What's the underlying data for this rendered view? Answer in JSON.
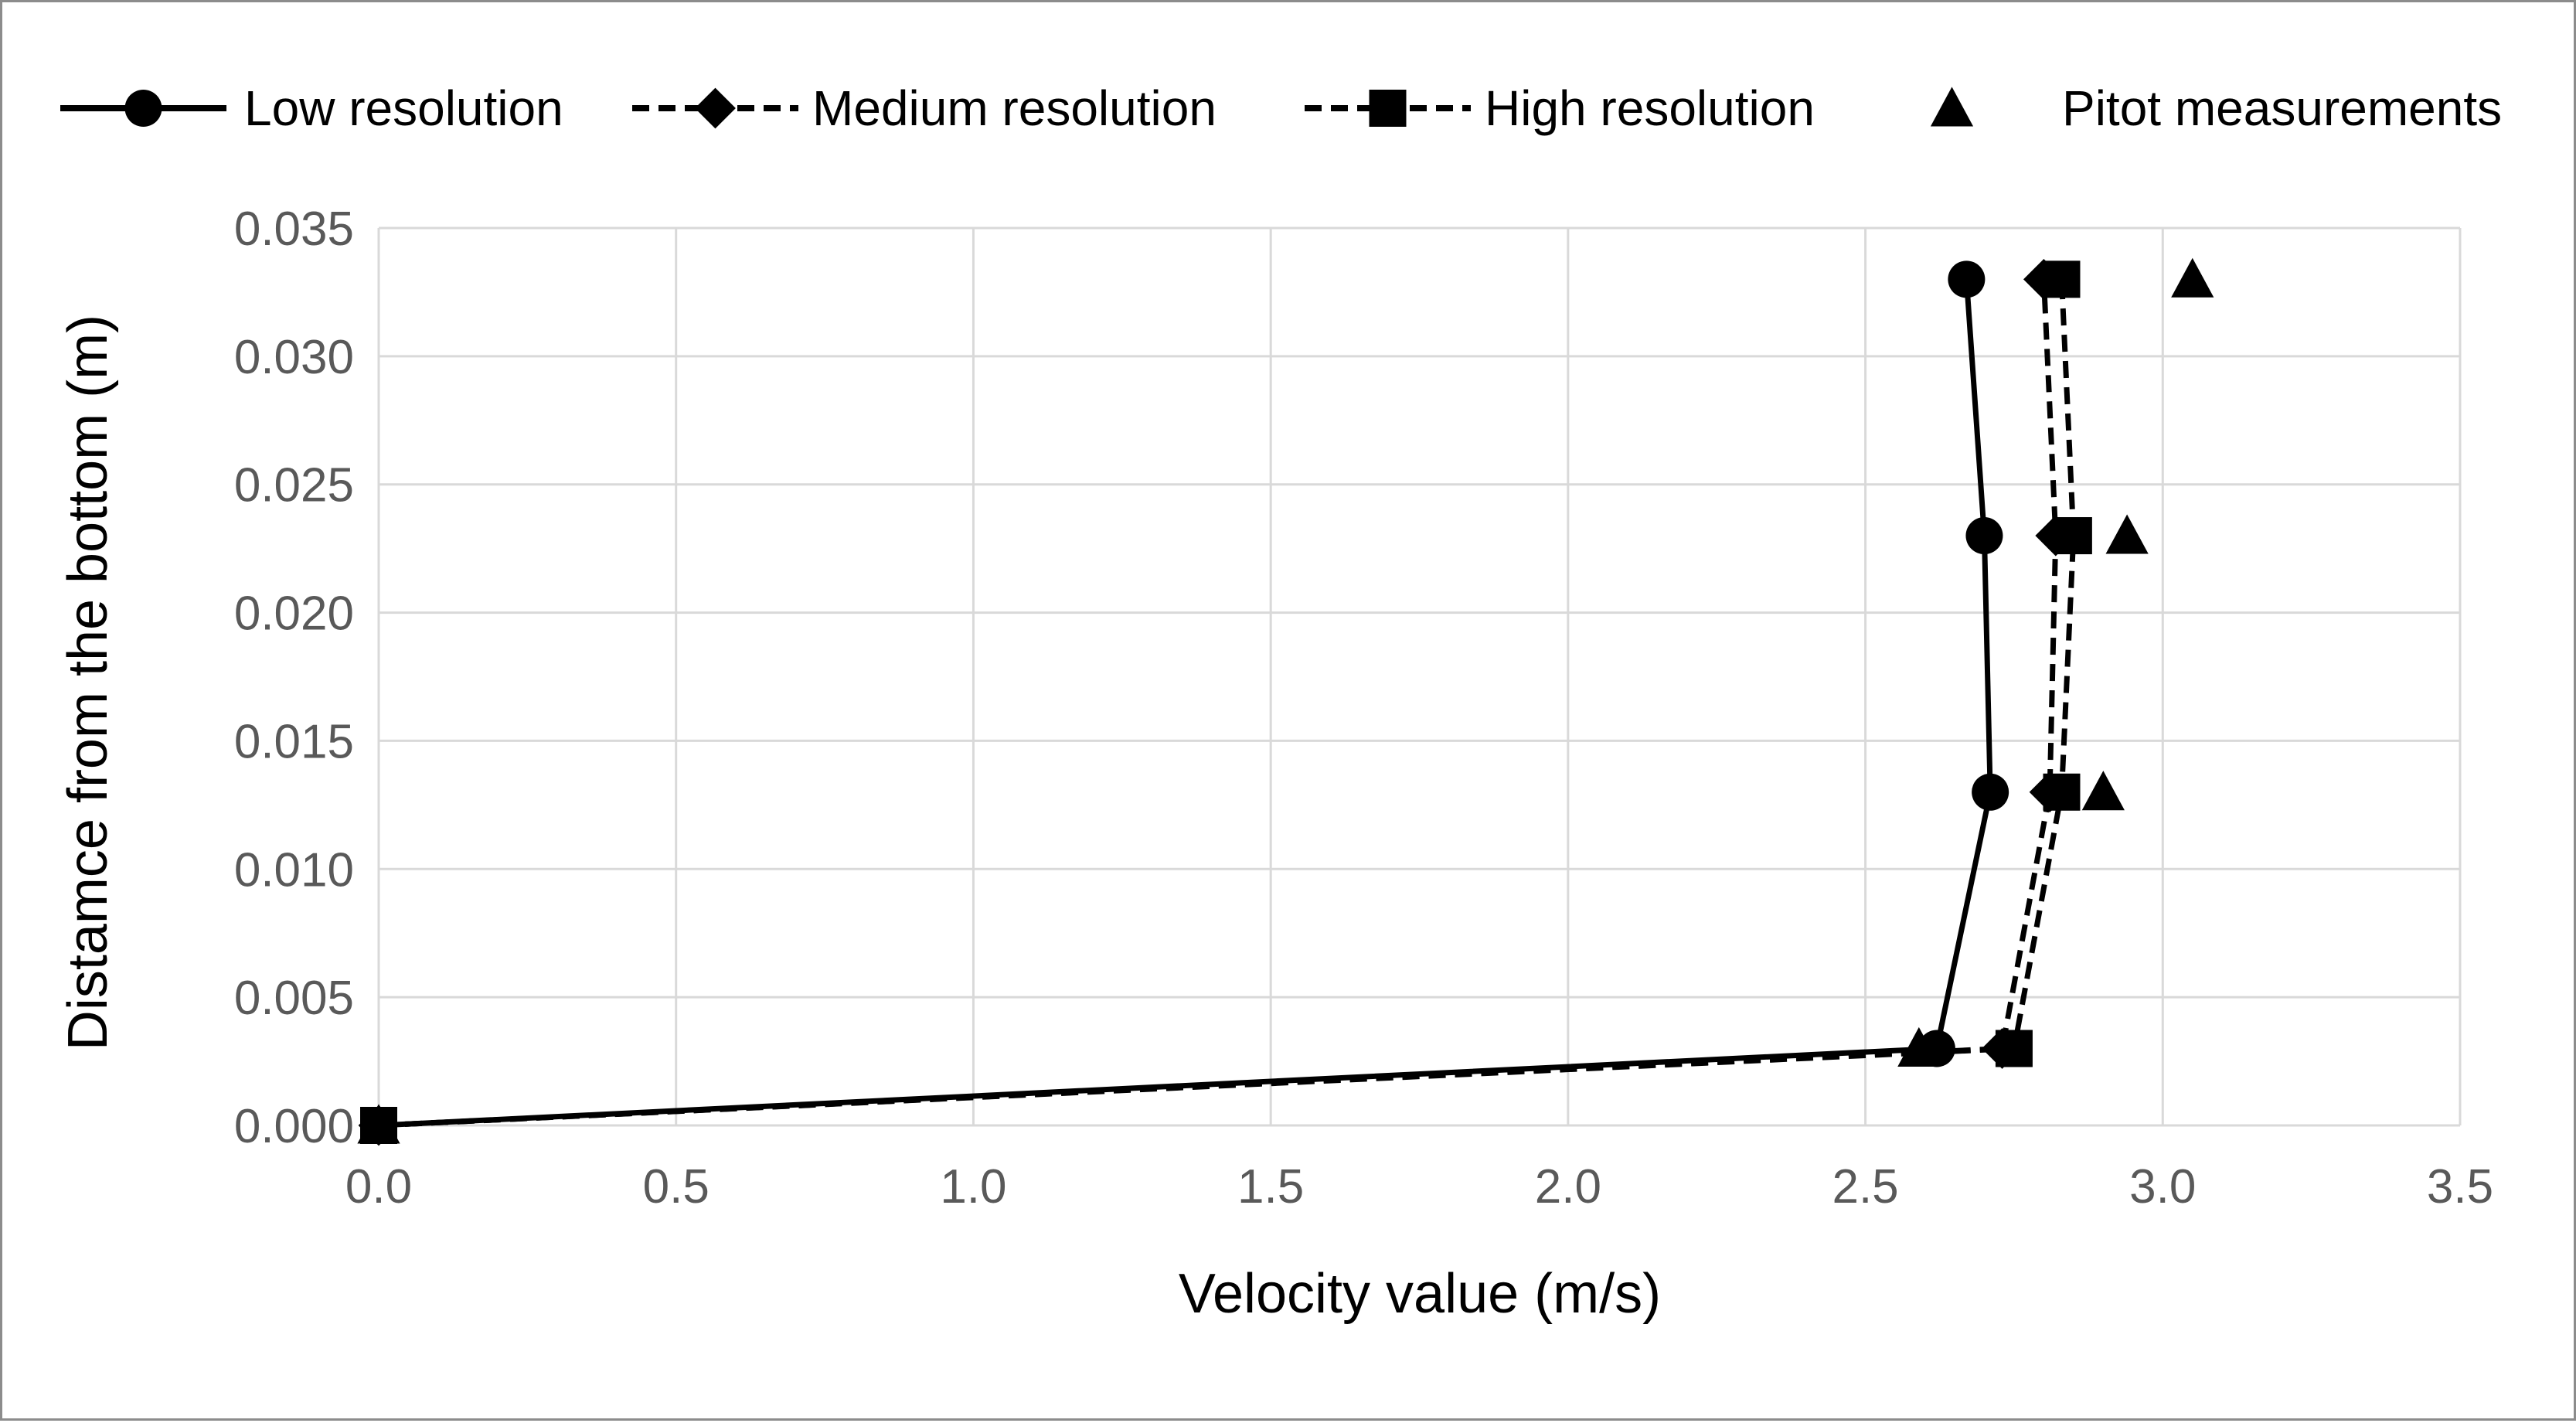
{
  "chart_data": {
    "type": "scatter",
    "title": "",
    "xlabel": "Velocity value (m/s)",
    "ylabel": "Distamce from the bottom (m)",
    "xlim": [
      0,
      3.5
    ],
    "ylim": [
      0,
      0.035
    ],
    "x_ticks": [
      "0.0",
      "0.5",
      "1.0",
      "1.5",
      "2.0",
      "2.5",
      "3.0",
      "3.5"
    ],
    "y_ticks": [
      "0.000",
      "0.005",
      "0.010",
      "0.015",
      "0.020",
      "0.025",
      "0.030",
      "0.035"
    ],
    "grid": true,
    "legend_position": "top",
    "series": [
      {
        "name": "Low resolution",
        "line": "solid",
        "marker": "circle",
        "color": "#000000",
        "x": [
          0.0,
          2.62,
          2.71,
          2.7,
          2.67
        ],
        "y": [
          0.0,
          0.003,
          0.013,
          0.023,
          0.033
        ]
      },
      {
        "name": "Medium resolution",
        "line": "dashed",
        "marker": "diamond",
        "color": "#000000",
        "x": [
          0.0,
          2.73,
          2.81,
          2.82,
          2.8
        ],
        "y": [
          0.0,
          0.003,
          0.013,
          0.023,
          0.033
        ]
      },
      {
        "name": "High resolution",
        "line": "dashed",
        "marker": "square",
        "color": "#000000",
        "x": [
          0.0,
          2.75,
          2.83,
          2.85,
          2.83
        ],
        "y": [
          0.0,
          0.003,
          0.013,
          0.023,
          0.033
        ]
      },
      {
        "name": "Pitot measurements",
        "line": "none",
        "marker": "triangle",
        "color": "#000000",
        "x": [
          0.0,
          2.59,
          2.9,
          2.94,
          3.05
        ],
        "y": [
          0.0,
          0.003,
          0.013,
          0.023,
          0.033
        ]
      }
    ]
  }
}
